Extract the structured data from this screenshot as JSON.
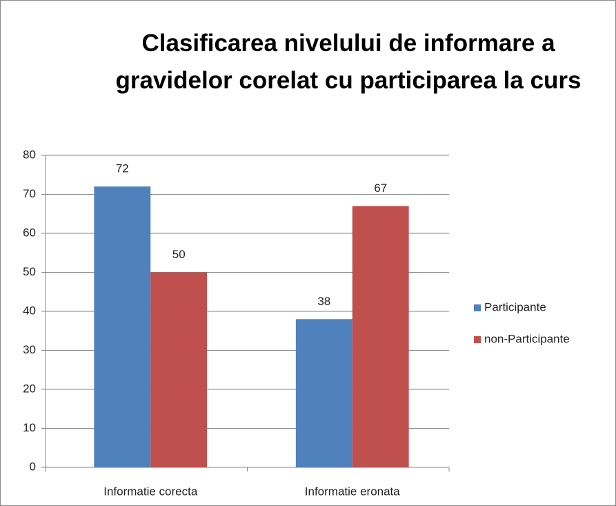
{
  "chart_data": {
    "type": "bar",
    "title": "Clasificarea nivelului de informare a gravidelor corelat cu participarea la curs",
    "categories": [
      "Informatie corecta",
      "Informatie eronata"
    ],
    "series": [
      {
        "name": "Participante",
        "color": "#4f81bd",
        "values": [
          72,
          38
        ]
      },
      {
        "name": "non-Participante",
        "color": "#c0504d",
        "values": [
          50,
          67
        ]
      }
    ],
    "ylim": [
      0,
      80
    ],
    "yticks": [
      0,
      10,
      20,
      30,
      40,
      50,
      60,
      70,
      80
    ],
    "grid": true,
    "legend": "right"
  }
}
